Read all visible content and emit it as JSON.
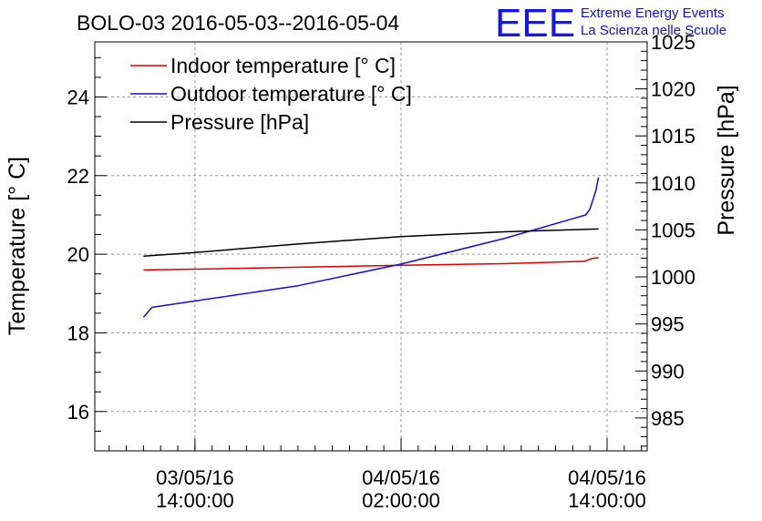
{
  "chart_data": {
    "type": "line",
    "title": "BOLO-03 2016-05-03--2016-05-04",
    "logo": {
      "mark": "EEE",
      "line1": "Extreme Energy Events",
      "line2": "La Scienza nelle Scuole"
    },
    "ylabel_left": "Temperature [° C]",
    "ylabel_right": "Pressure [hPa]",
    "ylim_left": [
      15,
      25.4
    ],
    "ylim_right": [
      981.5,
      1025
    ],
    "xlim": [
      "2016-05-03 08:10",
      "2016-05-04 16:20"
    ],
    "x_ticks": [
      {
        "t": "2016-05-03 14:00",
        "date": "03/05/16",
        "time": "14:00:00"
      },
      {
        "t": "2016-05-04 02:00",
        "date": "04/05/16",
        "time": "02:00:00"
      },
      {
        "t": "2016-05-04 14:00",
        "date": "04/05/16",
        "time": "14:00:00"
      }
    ],
    "yticks_left": [
      16,
      18,
      20,
      22,
      24
    ],
    "yticks_right": [
      985,
      990,
      995,
      1000,
      1005,
      1010,
      1015,
      1020,
      1025
    ],
    "grid": true,
    "legend_position": "top-left",
    "series": [
      {
        "name": "Indoor temperature [° C]",
        "color": "#dd0000",
        "axis": "left",
        "x": [
          "2016-05-03 11:00",
          "2016-05-03 14:00",
          "2016-05-03 20:00",
          "2016-05-04 02:00",
          "2016-05-04 08:00",
          "2016-05-04 12:40",
          "2016-05-04 13:10",
          "2016-05-04 13:30"
        ],
        "y": [
          19.6,
          19.62,
          19.67,
          19.72,
          19.76,
          19.82,
          19.9,
          19.91
        ]
      },
      {
        "name": "Outdoor temperature [° C]",
        "color": "#1010dd",
        "axis": "left",
        "x": [
          "2016-05-03 11:00",
          "2016-05-03 11:30",
          "2016-05-03 20:00",
          "2016-05-04 02:00",
          "2016-05-04 08:00",
          "2016-05-04 12:45",
          "2016-05-04 13:00",
          "2016-05-04 13:20",
          "2016-05-04 13:30"
        ],
        "y": [
          18.4,
          18.65,
          19.2,
          19.75,
          20.4,
          21.0,
          21.15,
          21.6,
          21.95
        ]
      },
      {
        "name": "Pressure [hPa]",
        "color": "#000000",
        "axis": "right",
        "x": [
          "2016-05-03 11:00",
          "2016-05-03 14:00",
          "2016-05-03 20:00",
          "2016-05-04 02:00",
          "2016-05-04 08:00",
          "2016-05-04 13:30"
        ],
        "y": [
          1002.2,
          1002.6,
          1003.5,
          1004.3,
          1004.8,
          1005.1
        ]
      }
    ]
  }
}
